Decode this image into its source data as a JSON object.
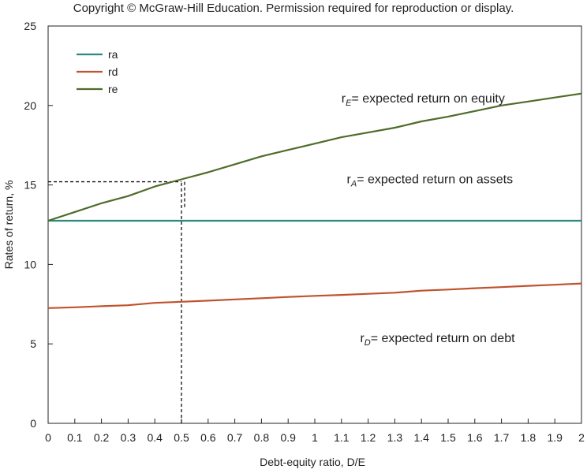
{
  "copyright": "Copyright © McGraw-Hill Education. Permission required for reproduction or display.",
  "chart_data": {
    "type": "line",
    "xlabel": "Debt-equity ratio, D/E",
    "ylabel": "Rates of return, %",
    "xlim": [
      0,
      2
    ],
    "ylim": [
      0,
      25
    ],
    "x_ticks": [
      "0",
      "0.1",
      "0.2",
      "0.3",
      "0.4",
      "0.5",
      "0.6",
      "0.7",
      "0.8",
      "0.9",
      "1",
      "1.1",
      "1.2",
      "1.3",
      "1.4",
      "1.5",
      "1.6",
      "1.7",
      "1.8",
      "1.9",
      "2"
    ],
    "y_ticks": [
      "0",
      "5",
      "10",
      "15",
      "20",
      "25"
    ],
    "grid": false,
    "legend_position": "top-left",
    "x": [
      0,
      0.1,
      0.2,
      0.3,
      0.4,
      0.5,
      0.6,
      0.7,
      0.8,
      0.9,
      1.0,
      1.1,
      1.2,
      1.3,
      1.4,
      1.5,
      1.6,
      1.7,
      1.8,
      1.9,
      2.0
    ],
    "series": [
      {
        "name": "ra",
        "color": "#2a8a80",
        "values": [
          12.75,
          12.75,
          12.75,
          12.75,
          12.75,
          12.75,
          12.75,
          12.75,
          12.75,
          12.75,
          12.75,
          12.75,
          12.75,
          12.75,
          12.75,
          12.75,
          12.75,
          12.75,
          12.75,
          12.75,
          12.75
        ]
      },
      {
        "name": "rd",
        "color": "#c0522d",
        "values": [
          7.25,
          7.3,
          7.37,
          7.43,
          7.58,
          7.65,
          7.72,
          7.8,
          7.87,
          7.95,
          8.02,
          8.08,
          8.15,
          8.22,
          8.35,
          8.42,
          8.5,
          8.57,
          8.65,
          8.72,
          8.8
        ]
      },
      {
        "name": "re",
        "color": "#4f6b2a",
        "values": [
          12.75,
          13.3,
          13.85,
          14.3,
          14.9,
          15.35,
          15.8,
          16.3,
          16.8,
          17.2,
          17.6,
          18.0,
          18.3,
          18.6,
          19.0,
          19.3,
          19.65,
          20.0,
          20.25,
          20.5,
          20.75
        ]
      }
    ],
    "reference_lines": {
      "x": 0.5,
      "y": 15.2,
      "style": "dashed"
    },
    "annotations": [
      {
        "sub": "E",
        "text": "= expected return on equity",
        "x": 1.1,
        "y": 20.2
      },
      {
        "sub": "A",
        "text": "= expected return on  assets",
        "x": 1.12,
        "y": 15.1
      },
      {
        "sub": "D",
        "text": "= expected return on debt",
        "x": 1.17,
        "y": 5.1
      }
    ]
  }
}
